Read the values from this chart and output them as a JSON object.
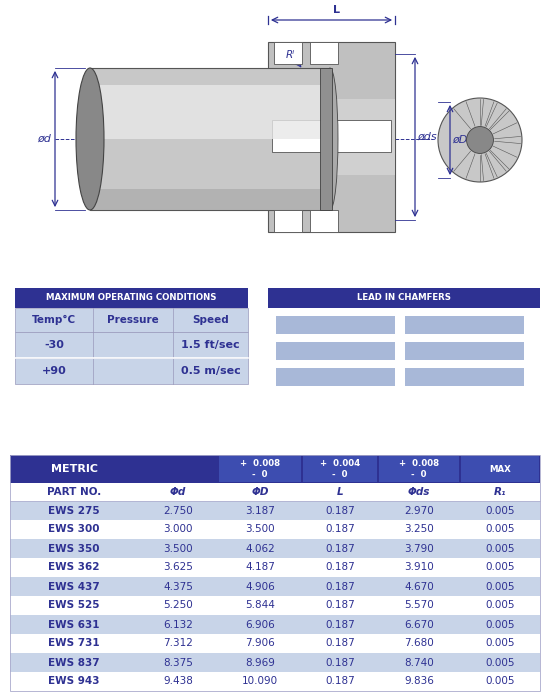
{
  "bg_color": "#ffffff",
  "dark_blue": "#2e3192",
  "light_blue": "#a8b8d8",
  "lighter_blue": "#c8d4e8",
  "mid_blue": "#3d4db0",
  "max_operating_title": "MAXIMUM OPERATING CONDITIONS",
  "max_op_headers": [
    "Temp°C",
    "Pressure",
    "Speed"
  ],
  "max_op_rows": [
    [
      "-30",
      "",
      "1.5 ft/sec"
    ],
    [
      "+90",
      "",
      "0.5 m/sec"
    ]
  ],
  "lead_in_title": "LEAD IN CHAMFERS",
  "metric_header": "METRIC",
  "metric_subheaders": [
    "+  0.008\n-  0",
    "+  0.004\n-  0",
    "+  0.008\n-  0",
    "MAX"
  ],
  "col_headers": [
    "Φd",
    "ΦD",
    "L",
    "Φds",
    "R₁"
  ],
  "table_rows": [
    [
      "EWS 275",
      "2.750",
      "3.187",
      "0.187",
      "2.970",
      "0.005"
    ],
    [
      "EWS 300",
      "3.000",
      "3.500",
      "0.187",
      "3.250",
      "0.005"
    ],
    [
      "EWS 350",
      "3.500",
      "4.062",
      "0.187",
      "3.790",
      "0.005"
    ],
    [
      "EWS 362",
      "3.625",
      "4.187",
      "0.187",
      "3.910",
      "0.005"
    ],
    [
      "EWS 437",
      "4.375",
      "4.906",
      "0.187",
      "4.670",
      "0.005"
    ],
    [
      "EWS 525",
      "5.250",
      "5.844",
      "0.187",
      "5.570",
      "0.005"
    ],
    [
      "EWS 631",
      "6.132",
      "6.906",
      "0.187",
      "6.670",
      "0.005"
    ],
    [
      "EWS 731",
      "7.312",
      "7.906",
      "0.187",
      "7.680",
      "0.005"
    ],
    [
      "EWS 837",
      "8.375",
      "8.969",
      "0.187",
      "8.740",
      "0.005"
    ],
    [
      "EWS 943",
      "9.438",
      "10.090",
      "0.187",
      "9.836",
      "0.005"
    ]
  ]
}
